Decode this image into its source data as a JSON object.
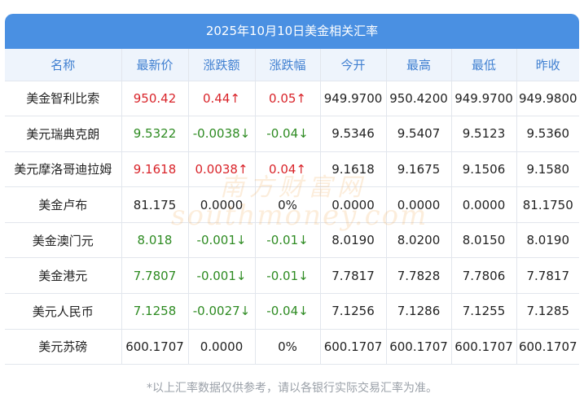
{
  "title": "2025年10月10日美金相关汇率",
  "headers": [
    "名称",
    "最新价",
    "涨跌额",
    "涨跌幅",
    "今开",
    "最高",
    "最低",
    "昨收"
  ],
  "rows": [
    {
      "name": "美金智利比索",
      "latest": "950.42",
      "change": "0.44↑",
      "pct": "0.05↑",
      "open": "949.9700",
      "high": "950.4200",
      "low": "949.9700",
      "prev": "949.9800",
      "trend": "up"
    },
    {
      "name": "美元瑞典克朗",
      "latest": "9.5322",
      "change": "-0.0038↓",
      "pct": "-0.04↓",
      "open": "9.5346",
      "high": "9.5407",
      "low": "9.5123",
      "prev": "9.5360",
      "trend": "down"
    },
    {
      "name": "美元摩洛哥迪拉姆",
      "latest": "9.1618",
      "change": "0.0038↑",
      "pct": "0.04↑",
      "open": "9.1618",
      "high": "9.1675",
      "low": "9.1506",
      "prev": "9.1580",
      "trend": "up"
    },
    {
      "name": "美金卢布",
      "latest": "81.175",
      "change": "0.0000",
      "pct": "0%",
      "open": "0.0000",
      "high": "0.0000",
      "low": "0.0000",
      "prev": "81.1750",
      "trend": "flat"
    },
    {
      "name": "美金澳门元",
      "latest": "8.018",
      "change": "-0.001↓",
      "pct": "-0.01↓",
      "open": "8.0190",
      "high": "8.0200",
      "low": "8.0150",
      "prev": "8.0190",
      "trend": "down"
    },
    {
      "name": "美金港元",
      "latest": "7.7807",
      "change": "-0.001↓",
      "pct": "-0.01↓",
      "open": "7.7817",
      "high": "7.7828",
      "low": "7.7806",
      "prev": "7.7817",
      "trend": "down"
    },
    {
      "name": "美元人民币",
      "latest": "7.1258",
      "change": "-0.0027↓",
      "pct": "-0.04↓",
      "open": "7.1256",
      "high": "7.1286",
      "low": "7.1255",
      "prev": "7.1285",
      "trend": "down"
    },
    {
      "name": "美元苏磅",
      "latest": "600.1707",
      "change": "0.0000",
      "pct": "0%",
      "open": "600.1707",
      "high": "600.1707",
      "low": "600.1707",
      "prev": "600.1707",
      "trend": "flat"
    }
  ],
  "footnote": "*以上汇率数据仅供参考，请以各银行实际交易汇率为准。",
  "watermark": {
    "line1": "南方财富网",
    "line2": "southmoney.com",
    "color": "#f0a040"
  },
  "colors": {
    "header_bg": "#4a90e2",
    "up": "#d9242a",
    "down": "#2e8b22",
    "header_text": "#3f7fd1"
  }
}
